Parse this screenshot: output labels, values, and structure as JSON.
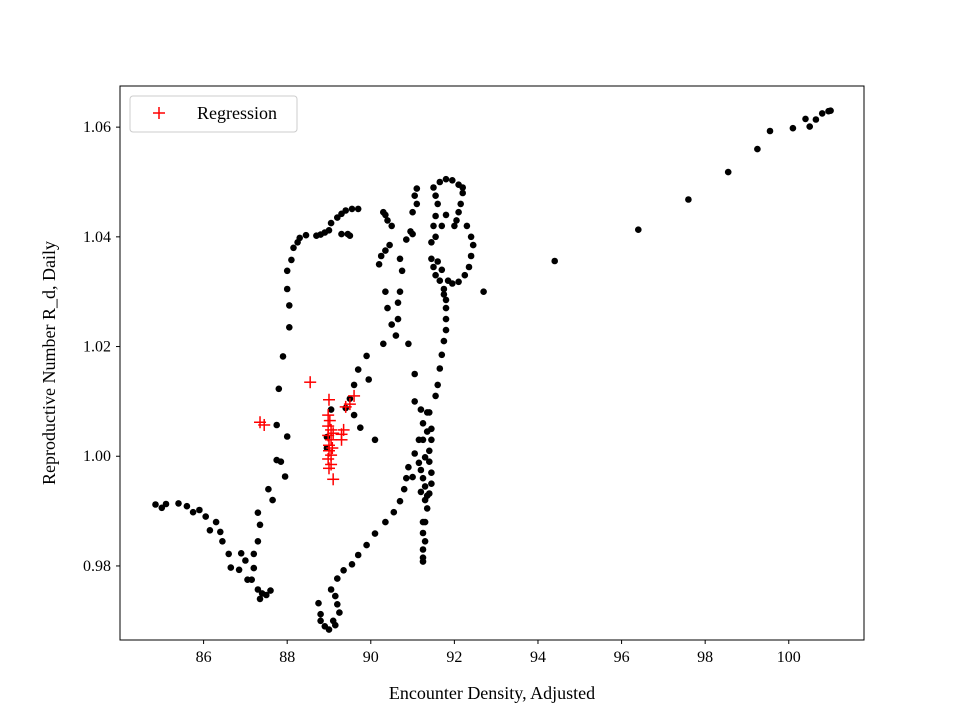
{
  "chart_data": {
    "type": "scatter",
    "title": "",
    "xlabel": "Encounter Density, Adjusted",
    "ylabel": "Reproductive Number R_d, Daily",
    "xlim": [
      84.0,
      101.8
    ],
    "ylim": [
      0.9665,
      1.0675
    ],
    "xticks": [
      86,
      88,
      90,
      92,
      94,
      96,
      98,
      100
    ],
    "yticks": [
      0.98,
      1.0,
      1.02,
      1.04,
      1.06
    ],
    "xtick_labels": [
      "86",
      "88",
      "90",
      "92",
      "94",
      "96",
      "98",
      "100"
    ],
    "ytick_labels": [
      "0.98",
      "1.00",
      "1.02",
      "1.04",
      "1.06"
    ],
    "grid": false,
    "legend": {
      "position": "top-left",
      "entries": [
        {
          "label": "Regression",
          "marker": "+",
          "color": "#ff0000"
        }
      ]
    },
    "series": [
      {
        "marker": "circle",
        "color": "#000000",
        "points": [
          [
            84.85,
            0.9912
          ],
          [
            85.0,
            0.9906
          ],
          [
            85.1,
            0.9913
          ],
          [
            85.4,
            0.9914
          ],
          [
            85.6,
            0.9909
          ],
          [
            85.75,
            0.9898
          ],
          [
            85.9,
            0.9902
          ],
          [
            86.05,
            0.989
          ],
          [
            86.15,
            0.9865
          ],
          [
            86.3,
            0.988
          ],
          [
            86.4,
            0.9862
          ],
          [
            86.45,
            0.9845
          ],
          [
            86.6,
            0.9822
          ],
          [
            86.65,
            0.9797
          ],
          [
            86.85,
            0.9793
          ],
          [
            86.9,
            0.9823
          ],
          [
            87.0,
            0.981
          ],
          [
            87.05,
            0.9775
          ],
          [
            87.15,
            0.9775
          ],
          [
            87.2,
            0.9822
          ],
          [
            87.3,
            0.9757
          ],
          [
            87.35,
            0.974
          ],
          [
            87.4,
            0.975
          ],
          [
            87.5,
            0.9747
          ],
          [
            87.6,
            0.9755
          ],
          [
            87.2,
            0.9796
          ],
          [
            87.3,
            0.9845
          ],
          [
            87.35,
            0.9875
          ],
          [
            87.3,
            0.9897
          ],
          [
            87.55,
            0.994
          ],
          [
            87.65,
            0.992
          ],
          [
            87.75,
            0.9993
          ],
          [
            87.85,
            0.999
          ],
          [
            87.75,
            1.0057
          ],
          [
            87.8,
            1.0123
          ],
          [
            87.9,
            1.0182
          ],
          [
            87.95,
            0.9963
          ],
          [
            88.0,
            1.0036
          ],
          [
            88.05,
            1.0235
          ],
          [
            88.05,
            1.0275
          ],
          [
            88.0,
            1.0305
          ],
          [
            88.0,
            1.0338
          ],
          [
            88.1,
            1.0358
          ],
          [
            88.15,
            1.038
          ],
          [
            88.25,
            1.039
          ],
          [
            88.3,
            1.0398
          ],
          [
            88.45,
            1.0403
          ],
          [
            88.7,
            1.0402
          ],
          [
            88.8,
            1.0404
          ],
          [
            88.9,
            1.0408
          ],
          [
            89.0,
            1.0412
          ],
          [
            89.05,
            1.0425
          ],
          [
            89.2,
            1.0435
          ],
          [
            89.3,
            1.0442
          ],
          [
            89.4,
            1.0448
          ],
          [
            89.55,
            1.0451
          ],
          [
            89.7,
            1.0451
          ],
          [
            89.45,
            1.0405
          ],
          [
            89.5,
            1.0402
          ],
          [
            89.3,
            1.0405
          ],
          [
            89.05,
            1.0085
          ],
          [
            88.95,
            1.0035
          ],
          [
            88.95,
            1.0015
          ],
          [
            89.4,
            1.0088
          ],
          [
            89.5,
            1.0105
          ],
          [
            89.6,
            1.013
          ],
          [
            89.7,
            1.0158
          ],
          [
            89.6,
            1.0075
          ],
          [
            89.75,
            1.0052
          ],
          [
            89.95,
            1.014
          ],
          [
            89.9,
            1.0183
          ],
          [
            90.1,
            1.003
          ],
          [
            90.3,
            1.0205
          ],
          [
            90.2,
            1.035
          ],
          [
            90.25,
            1.0365
          ],
          [
            90.3,
            1.0445
          ],
          [
            90.35,
            1.044
          ],
          [
            90.4,
            1.043
          ],
          [
            90.5,
            1.042
          ],
          [
            90.45,
            1.0385
          ],
          [
            90.35,
            1.0375
          ],
          [
            90.35,
            1.03
          ],
          [
            90.4,
            1.027
          ],
          [
            90.5,
            1.024
          ],
          [
            90.6,
            1.022
          ],
          [
            90.7,
            1.03
          ],
          [
            90.75,
            1.0338
          ],
          [
            90.7,
            1.036
          ],
          [
            90.65,
            1.028
          ],
          [
            90.65,
            1.025
          ],
          [
            90.85,
            1.0395
          ],
          [
            90.95,
            1.041
          ],
          [
            91.0,
            1.0405
          ],
          [
            91.0,
            1.0445
          ],
          [
            90.9,
            1.0205
          ],
          [
            91.05,
            1.015
          ],
          [
            91.05,
            1.01
          ],
          [
            91.1,
            1.046
          ],
          [
            91.05,
            1.0475
          ],
          [
            91.1,
            1.0488
          ],
          [
            88.75,
            0.9732
          ],
          [
            88.8,
            0.97
          ],
          [
            88.8,
            0.9712
          ],
          [
            88.9,
            0.969
          ],
          [
            89.0,
            0.9684
          ],
          [
            89.1,
            0.97
          ],
          [
            89.15,
            0.9692
          ],
          [
            89.25,
            0.9715
          ],
          [
            89.2,
            0.973
          ],
          [
            89.15,
            0.9745
          ],
          [
            89.05,
            0.9757
          ],
          [
            89.2,
            0.9777
          ],
          [
            89.35,
            0.9792
          ],
          [
            89.55,
            0.9803
          ],
          [
            89.7,
            0.982
          ],
          [
            89.9,
            0.9838
          ],
          [
            90.1,
            0.9859
          ],
          [
            90.35,
            0.988
          ],
          [
            90.55,
            0.9898
          ],
          [
            90.7,
            0.9918
          ],
          [
            90.8,
            0.994
          ],
          [
            90.85,
            0.996
          ],
          [
            90.9,
            0.998
          ],
          [
            91.0,
            0.9962
          ],
          [
            91.05,
            1.0005
          ],
          [
            91.15,
            1.003
          ],
          [
            91.25,
            1.006
          ],
          [
            91.35,
            1.008
          ],
          [
            91.2,
            1.0085
          ],
          [
            91.3,
            0.9998
          ],
          [
            91.15,
            0.9988
          ],
          [
            91.2,
            0.9975
          ],
          [
            91.25,
            0.996
          ],
          [
            91.3,
            0.9945
          ],
          [
            91.2,
            0.9935
          ],
          [
            91.3,
            0.992
          ],
          [
            91.35,
            0.9905
          ],
          [
            91.25,
            0.988
          ],
          [
            91.25,
            0.986
          ],
          [
            91.3,
            0.9845
          ],
          [
            91.25,
            0.983
          ],
          [
            91.25,
            0.9815
          ],
          [
            91.25,
            0.9808
          ],
          [
            91.3,
            0.988
          ],
          [
            91.25,
            1.003
          ],
          [
            91.35,
            1.0045
          ],
          [
            91.45,
            1.005
          ],
          [
            91.45,
            1.003
          ],
          [
            91.4,
            1.001
          ],
          [
            91.4,
            0.999
          ],
          [
            91.45,
            0.997
          ],
          [
            91.45,
            0.995
          ],
          [
            91.4,
            0.9932
          ],
          [
            91.35,
            0.9928
          ],
          [
            91.4,
            1.008
          ],
          [
            91.55,
            1.011
          ],
          [
            91.6,
            1.013
          ],
          [
            91.65,
            1.016
          ],
          [
            91.7,
            1.0185
          ],
          [
            91.75,
            1.021
          ],
          [
            91.8,
            1.023
          ],
          [
            91.8,
            1.025
          ],
          [
            91.8,
            1.027
          ],
          [
            91.8,
            1.0285
          ],
          [
            91.75,
            1.0295
          ],
          [
            91.75,
            1.0305
          ],
          [
            91.65,
            1.032
          ],
          [
            91.55,
            1.033
          ],
          [
            91.5,
            1.0345
          ],
          [
            91.45,
            1.036
          ],
          [
            91.45,
            1.039
          ],
          [
            91.55,
            1.04
          ],
          [
            91.5,
            1.042
          ],
          [
            91.55,
            1.0438
          ],
          [
            91.6,
            1.046
          ],
          [
            91.55,
            1.0475
          ],
          [
            91.5,
            1.049
          ],
          [
            91.65,
            1.05
          ],
          [
            91.8,
            1.0505
          ],
          [
            91.95,
            1.0503
          ],
          [
            92.1,
            1.0495
          ],
          [
            92.2,
            1.048
          ],
          [
            92.15,
            1.046
          ],
          [
            92.1,
            1.0445
          ],
          [
            92.05,
            1.043
          ],
          [
            92.0,
            1.042
          ],
          [
            92.3,
            1.042
          ],
          [
            92.4,
            1.04
          ],
          [
            92.45,
            1.0385
          ],
          [
            92.4,
            1.0365
          ],
          [
            92.35,
            1.0345
          ],
          [
            92.25,
            1.033
          ],
          [
            92.1,
            1.0318
          ],
          [
            91.95,
            1.0315
          ],
          [
            91.85,
            1.032
          ],
          [
            91.7,
            1.034
          ],
          [
            91.6,
            1.0355
          ],
          [
            92.7,
            1.03
          ],
          [
            92.2,
            1.049
          ],
          [
            91.8,
            1.044
          ],
          [
            91.7,
            1.042
          ],
          [
            94.4,
            1.0356
          ],
          [
            96.4,
            1.0413
          ],
          [
            97.6,
            1.0468
          ],
          [
            98.55,
            1.0518
          ],
          [
            99.25,
            1.056
          ],
          [
            99.55,
            1.0593
          ],
          [
            100.1,
            1.0598
          ],
          [
            100.4,
            1.0615
          ],
          [
            100.5,
            1.0601
          ],
          [
            100.65,
            1.0614
          ],
          [
            100.8,
            1.0625
          ],
          [
            100.95,
            1.0629
          ],
          [
            101.0,
            1.063
          ]
        ]
      },
      {
        "name": "Regression",
        "marker": "+",
        "color": "#ff0000",
        "points": [
          [
            87.35,
            1.0062
          ],
          [
            87.45,
            1.0057
          ],
          [
            88.55,
            1.0135
          ],
          [
            89.0,
            1.0103
          ],
          [
            88.98,
            1.0075
          ],
          [
            89.02,
            1.0065
          ],
          [
            88.98,
            1.0055
          ],
          [
            89.05,
            1.0048
          ],
          [
            89.1,
            1.0042
          ],
          [
            88.98,
            1.0038
          ],
          [
            89.05,
            1.003
          ],
          [
            89.0,
            1.002
          ],
          [
            89.08,
            1.0015
          ],
          [
            89.0,
            1.001
          ],
          [
            89.05,
            1.0002
          ],
          [
            88.98,
            0.9995
          ],
          [
            89.05,
            0.9985
          ],
          [
            89.0,
            0.9978
          ],
          [
            89.1,
            0.9958
          ],
          [
            89.3,
            1.004
          ],
          [
            89.35,
            1.0048
          ],
          [
            89.3,
            1.003
          ],
          [
            89.4,
            1.009
          ],
          [
            89.5,
            1.0095
          ],
          [
            89.6,
            1.011
          ]
        ]
      }
    ]
  }
}
